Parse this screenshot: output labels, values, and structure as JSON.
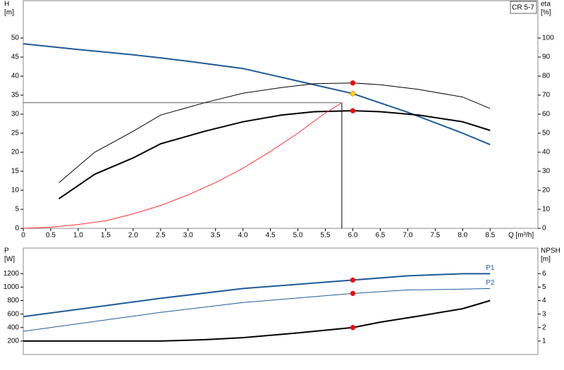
{
  "chart_data": [
    {
      "type": "line",
      "annotation": "CR 5-7",
      "y_label": "H",
      "y_unit": "[m]",
      "y2_label": "eta",
      "y2_unit": "[%]",
      "x_label": "Q [m³/h]",
      "xlim": [
        0,
        9.37
      ],
      "ylim": [
        0,
        60
      ],
      "y2lim": [
        0,
        120
      ],
      "xticks": [
        0,
        0.5,
        {
          "value": 1,
          "label": "1.0"
        },
        1.5,
        {
          "value": 2,
          "label": "2.0"
        },
        2.5,
        {
          "value": 3,
          "label": "3.0"
        },
        3.5,
        {
          "value": 4,
          "label": "4.0"
        },
        4.5,
        {
          "value": 5,
          "label": "5.0"
        },
        5.5,
        {
          "value": 6,
          "label": "6.0"
        },
        6.5,
        {
          "value": 7,
          "label": "7.0"
        },
        7.5,
        {
          "value": 8,
          "label": "8.0"
        },
        8.5
      ],
      "yticks": [
        0,
        5,
        10,
        15,
        20,
        25,
        30,
        35,
        40,
        45,
        50
      ],
      "y2ticks": [
        0,
        10,
        20,
        30,
        40,
        50,
        60,
        70,
        80,
        90,
        100
      ],
      "operating_point": {
        "x": 5.8,
        "y": 33
      },
      "highlight_x": 6,
      "series": [
        {
          "color": "#1f5a96",
          "width": 2,
          "highlight_color": "#ffd700",
          "x": [
            0,
            1,
            2,
            2.5,
            3,
            4,
            5,
            6,
            7,
            8,
            8.5
          ],
          "values": [
            48.5,
            47,
            45.6,
            44.8,
            43.9,
            42,
            38.7,
            35.4,
            30.5,
            25,
            22
          ]
        },
        {
          "color": "#000000",
          "width": 1,
          "axis": "y2",
          "highlight_color": "#ff0000",
          "x": [
            0.65,
            1.3,
            2,
            2.5,
            3.3,
            4,
            4.7,
            5.3,
            6,
            6.5,
            7.2,
            8,
            8.5
          ],
          "values": [
            24,
            40,
            51,
            59.5,
            66,
            71,
            74,
            76,
            76.4,
            75.5,
            73,
            69,
            63
          ]
        },
        {
          "color": "#000000",
          "width": 2,
          "axis": "y2",
          "highlight_color": "#ff0000",
          "x": [
            0.65,
            1.3,
            2,
            2.5,
            3.3,
            4,
            4.7,
            5.3,
            6,
            6.5,
            7.2,
            8,
            8.5
          ],
          "values": [
            15.6,
            28.4,
            37,
            44.4,
            51,
            56,
            59.5,
            61.3,
            61.8,
            61.3,
            59.5,
            56,
            51.5
          ]
        },
        {
          "color": "#ff3030",
          "width": 1,
          "x": [
            0,
            0.5,
            1,
            1.5,
            2,
            2.5,
            3,
            3.5,
            4,
            4.5,
            5,
            5.5,
            5.8
          ],
          "values": [
            0,
            0.3,
            1,
            2,
            3.8,
            6,
            8.8,
            12,
            15.8,
            20.2,
            25,
            30.3,
            33
          ]
        }
      ]
    },
    {
      "type": "line",
      "y_label": "P",
      "y_unit": "[W]",
      "y2_label": "NPSH",
      "y2_unit": "[m]",
      "xlim": [
        0,
        9.37
      ],
      "ylim": [
        0,
        1600
      ],
      "y2lim": [
        0,
        8
      ],
      "yticks": [
        {
          "value": 200,
          "label": "200"
        },
        400,
        600,
        800,
        1000,
        1200
      ],
      "y2ticks": [
        1,
        2,
        3,
        4,
        5,
        6
      ],
      "highlight_x": 6,
      "series": [
        {
          "name": "P1",
          "color": "#1f5a96",
          "width": 2,
          "highlight_color": "#ff0000",
          "x": [
            0,
            2.5,
            4,
            6,
            7,
            8,
            8.5
          ],
          "values": [
            562,
            833,
            979,
            1104,
            1167,
            1198,
            1198
          ]
        },
        {
          "name": "P2",
          "color": "#1f5a96",
          "width": 1,
          "highlight_color": "#ff0000",
          "x": [
            0,
            2.5,
            4,
            6,
            7,
            8,
            8.5
          ],
          "values": [
            344,
            625,
            771,
            906,
            958,
            969,
            979
          ]
        },
        {
          "color": "#000000",
          "width": 2,
          "axis": "y2",
          "highlight_color": "#ff0000",
          "x": [
            0,
            2.5,
            3.3,
            4,
            5,
            6,
            6.5,
            7.2,
            8,
            8.5
          ],
          "values": [
            1,
            1,
            1.1,
            1.25,
            1.6,
            2,
            2.4,
            2.85,
            3.4,
            4
          ]
        }
      ]
    }
  ]
}
